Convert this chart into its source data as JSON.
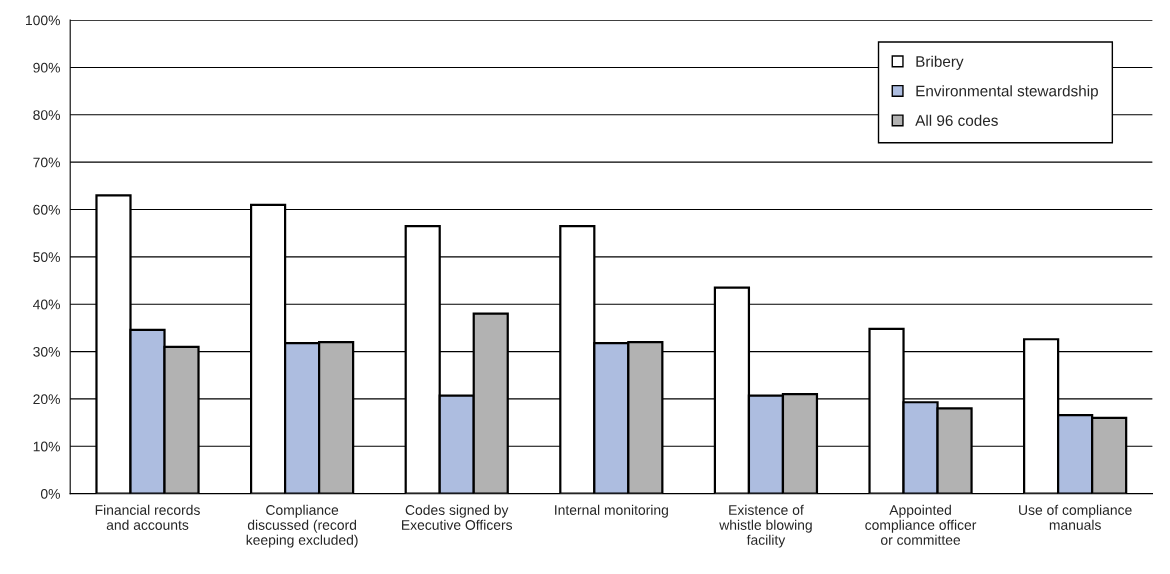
{
  "chart_data": {
    "type": "bar",
    "categories": [
      "Financial records\nand accounts",
      "Compliance\ndiscussed (record\nkeeping excluded)",
      "Codes signed by\nExecutive Officers",
      "Internal monitoring",
      "Existence of\nwhistle blowing\nfacility",
      "Appointed\ncompliance officer\nor committee",
      "Use of compliance\nmanuals"
    ],
    "series": [
      {
        "name": "Bribery",
        "color": "#ffffff",
        "values": [
          63,
          61,
          56.5,
          56.5,
          43.5,
          34.8,
          32.6
        ]
      },
      {
        "name": "Environmental stewardship",
        "color": "#adbde0",
        "values": [
          34.6,
          31.8,
          20.7,
          31.8,
          20.7,
          19.3,
          16.6
        ]
      },
      {
        "name": "All 96 codes",
        "color": "#b2b2b2",
        "values": [
          31,
          32,
          38,
          32,
          21,
          18,
          16
        ]
      }
    ],
    "ylim": [
      0,
      100
    ],
    "yticks": [
      {
        "value": 0,
        "label": "0%"
      },
      {
        "value": 10,
        "label": "10%"
      },
      {
        "value": 20,
        "label": "20%"
      },
      {
        "value": 30,
        "label": "30%"
      },
      {
        "value": 40,
        "label": "40%"
      },
      {
        "value": 50,
        "label": "50%"
      },
      {
        "value": 60,
        "label": "60%"
      },
      {
        "value": 70,
        "label": "70%"
      },
      {
        "value": 80,
        "label": "80%"
      },
      {
        "value": 90,
        "label": "90%"
      },
      {
        "value": 100,
        "label": "100%"
      }
    ],
    "grid": "y",
    "legend": "top right"
  }
}
